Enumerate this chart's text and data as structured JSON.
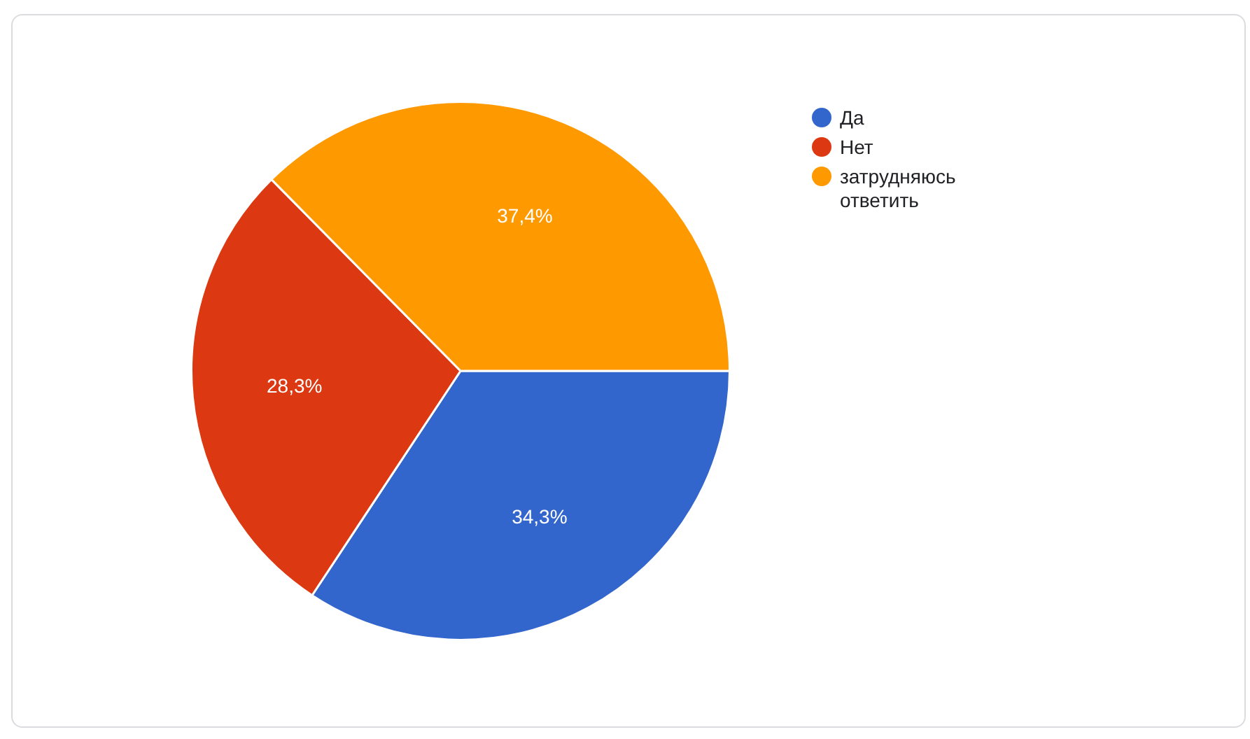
{
  "chart_data": {
    "type": "pie",
    "categories": [
      "Да",
      "Нет",
      "затрудняюсь ответить"
    ],
    "values": [
      34.3,
      28.3,
      37.4
    ],
    "colors": [
      "#3366cc",
      "#dc3912",
      "#ff9900"
    ],
    "value_labels": [
      "34,3%",
      "28,3%",
      "37,4%"
    ],
    "legend": "top right"
  }
}
